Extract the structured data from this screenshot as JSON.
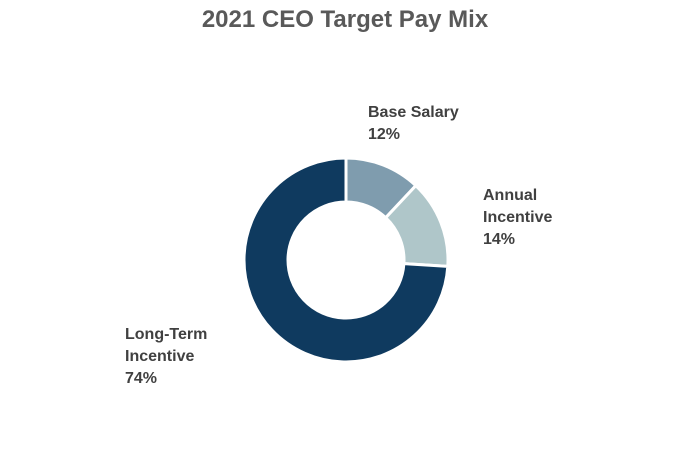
{
  "chart_data": {
    "type": "pie",
    "donut": true,
    "title": "2021 CEO Target Pay Mix",
    "slices": [
      {
        "name": "Base Salary",
        "label_lines": [
          "Base Salary"
        ],
        "percent_label": "12%",
        "value": 12,
        "color": "#7f9cae"
      },
      {
        "name": "Annual Incentive",
        "label_lines": [
          "Annual",
          "Incentive"
        ],
        "percent_label": "14%",
        "value": 14,
        "color": "#afc6c9"
      },
      {
        "name": "Long-Term Incentive",
        "label_lines": [
          "Long-Term",
          "Incentive"
        ],
        "percent_label": "74%",
        "value": 74,
        "color": "#0f3a5f"
      }
    ],
    "legend": "none"
  }
}
